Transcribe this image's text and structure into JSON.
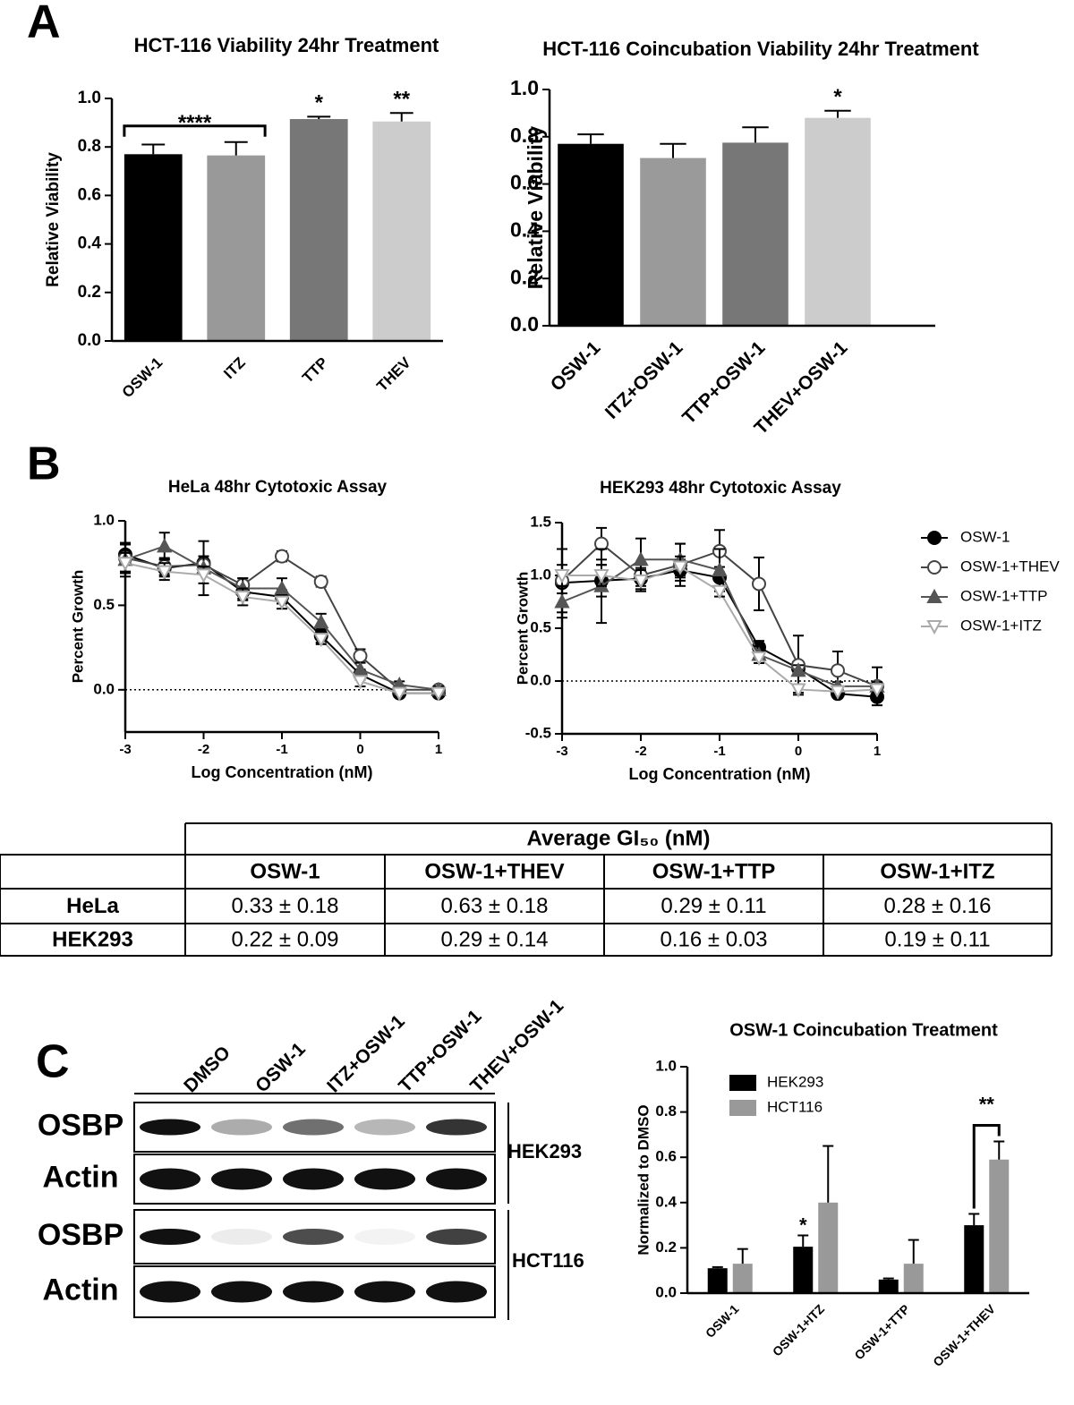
{
  "panel_labels": [
    "A",
    "B",
    "C"
  ],
  "chart_data": [
    {
      "type": "bar",
      "title": "HCT-116 Viability 24hr Treatment",
      "y_label": "Relative Viability",
      "categories": [
        "OSW-1",
        "ITZ",
        "TTP",
        "THEV"
      ],
      "values": [
        0.77,
        0.765,
        0.915,
        0.905
      ],
      "errors": [
        0.04,
        0.055,
        0.01,
        0.035
      ],
      "colors": [
        "#000000",
        "#999999",
        "#777777",
        "#cccccc"
      ],
      "ylim": [
        0,
        1.0
      ],
      "yticks": [
        {
          "value": 0,
          "label": "0.0"
        },
        0.2,
        0.4,
        0.6,
        0.8,
        {
          "value": 1.0,
          "label": "1.0"
        }
      ],
      "annotations": [
        {
          "text": "****",
          "from": "OSW-1",
          "to": "ITZ"
        },
        {
          "text": "*",
          "category": "TTP"
        },
        {
          "text": "**",
          "category": "THEV"
        }
      ]
    },
    {
      "type": "bar",
      "title": "HCT-116 Coincubation Viability 24hr Treatment",
      "y_label": "Relative Viability",
      "categories": [
        "OSW-1",
        "ITZ+OSW-1",
        "TTP+OSW-1",
        "THEV+OSW-1"
      ],
      "values": [
        0.77,
        0.71,
        0.775,
        0.88
      ],
      "errors": [
        0.04,
        0.06,
        0.065,
        0.03
      ],
      "colors": [
        "#000000",
        "#9a9a9a",
        "#777777",
        "#cccccc"
      ],
      "ylim": [
        0,
        1.0
      ],
      "yticks": [
        {
          "value": 0,
          "label": "0.0"
        },
        0.2,
        0.4,
        0.6,
        0.8,
        {
          "value": 1.0,
          "label": "1.0"
        }
      ],
      "annotations": [
        {
          "text": "*",
          "category": "THEV+OSW-1"
        }
      ]
    },
    {
      "type": "dose",
      "title": "HeLa 48hr Cytotoxic Assay",
      "x_label": "Log Concentration (nM)",
      "y_label": "Percent Growth",
      "x": [
        -3,
        -2.5,
        -2,
        -1.5,
        -1,
        -0.5,
        0,
        0.5,
        1
      ],
      "xlim": [
        -3,
        1
      ],
      "xticks": [
        -3,
        -2,
        -1,
        0,
        1
      ],
      "ylim": [
        -0.25,
        1.0
      ],
      "yticks": [
        {
          "value": 0,
          "label": "0.0"
        },
        0.5,
        {
          "value": 1.0,
          "label": "1.0"
        }
      ],
      "zero_line": true,
      "series": [
        {
          "marker": "circle",
          "color": "#000000",
          "values": [
            0.8,
            0.72,
            0.75,
            0.58,
            0.55,
            0.32,
            0.09,
            -0.02,
            -0.02
          ],
          "errors": [
            0.06,
            0.05,
            0.04,
            0.05,
            0.04,
            0.04,
            0.03,
            0.02,
            0.02
          ]
        },
        {
          "marker": "open-circle",
          "color": "#444444",
          "values": [
            0.78,
            0.73,
            0.74,
            0.62,
            0.79,
            0.64,
            0.2,
            0.0,
            0.0
          ],
          "errors": [
            0.08,
            0.05,
            0.05,
            0.04,
            0.03,
            0.03,
            0.04,
            0.02,
            0.02
          ]
        },
        {
          "marker": "triangle",
          "color": "#555555",
          "values": [
            0.77,
            0.85,
            0.72,
            0.6,
            0.6,
            0.4,
            0.12,
            0.03,
            0.0
          ],
          "errors": [
            0.1,
            0.08,
            0.16,
            0.06,
            0.06,
            0.05,
            0.04,
            0.02,
            0.02
          ]
        },
        {
          "marker": "open-triangle-down",
          "color": "#aaaaaa",
          "values": [
            0.75,
            0.7,
            0.68,
            0.55,
            0.52,
            0.3,
            0.05,
            -0.02,
            -0.02
          ],
          "errors": [
            0.06,
            0.05,
            0.05,
            0.05,
            0.04,
            0.03,
            0.03,
            0.02,
            0.02
          ]
        }
      ]
    },
    {
      "type": "dose",
      "title": "HEK293 48hr Cytotoxic Assay",
      "x_label": "Log Concentration (nM)",
      "y_label": "Percent Growth",
      "x": [
        -3,
        -2.5,
        -2,
        -1.5,
        -1,
        -0.5,
        0,
        0.5,
        1
      ],
      "xlim": [
        -3,
        1
      ],
      "xticks": [
        -3,
        -2,
        -1,
        0,
        1
      ],
      "ylim": [
        -0.5,
        1.5
      ],
      "yticks": [
        -0.5,
        {
          "value": 0,
          "label": "0.0"
        },
        0.5,
        {
          "value": 1.0,
          "label": "1.0"
        },
        1.5
      ],
      "zero_line": true,
      "series": [
        {
          "name": "OSW-1",
          "marker": "circle",
          "color": "#000000",
          "values": [
            0.93,
            0.95,
            0.97,
            1.05,
            0.98,
            0.32,
            0.12,
            -0.12,
            -0.15
          ],
          "errors": [
            0.1,
            0.15,
            0.1,
            0.1,
            0.1,
            0.06,
            0.04,
            0.03,
            0.03
          ]
        },
        {
          "name": "OSW-1+THEV",
          "marker": "open-circle",
          "color": "#444444",
          "values": [
            0.95,
            1.3,
            1.0,
            1.1,
            1.23,
            0.92,
            0.15,
            0.1,
            -0.05
          ],
          "errors": [
            0.3,
            0.15,
            0.1,
            0.2,
            0.2,
            0.25,
            0.28,
            0.18,
            0.18
          ]
        },
        {
          "name": "OSW-1+TTP",
          "marker": "triangle",
          "color": "#555555",
          "values": [
            0.75,
            0.9,
            1.15,
            1.15,
            1.05,
            0.25,
            0.1,
            -0.05,
            -0.05
          ],
          "errors": [
            0.15,
            0.35,
            0.2,
            0.15,
            0.2,
            0.08,
            0.05,
            0.04,
            0.04
          ]
        },
        {
          "name": "OSW-1+ITZ",
          "marker": "open-triangle-down",
          "color": "#aaaaaa",
          "values": [
            1.0,
            1.0,
            0.95,
            1.08,
            0.85,
            0.22,
            -0.08,
            -0.1,
            -0.08
          ],
          "errors": [
            0.1,
            0.1,
            0.1,
            0.1,
            0.05,
            0.05,
            0.03,
            0.03,
            0.03
          ]
        }
      ]
    },
    {
      "type": "grouped-bar",
      "title": "OSW-1 Coincubation Treatment",
      "y_label": "Normalized to DMSO",
      "categories": [
        "OSW-1",
        "OSW-1+ITZ",
        "OSW-1+TTP",
        "OSW-1+THEV"
      ],
      "ylim": [
        0,
        1.0
      ],
      "yticks": [
        {
          "value": 0,
          "label": "0.0"
        },
        0.2,
        0.4,
        0.6,
        0.8,
        {
          "value": 1.0,
          "label": "1.0"
        }
      ],
      "series": [
        {
          "name": "HEK293",
          "color": "#000000",
          "values": [
            0.11,
            0.205,
            0.06,
            0.3
          ],
          "errors": [
            0.005,
            0.05,
            0.005,
            0.05
          ]
        },
        {
          "name": "HCT116",
          "color": "#999999",
          "values": [
            0.13,
            0.4,
            0.13,
            0.59
          ],
          "errors": [
            0.065,
            0.25,
            0.105,
            0.08
          ]
        }
      ],
      "annotations": [
        {
          "text": "*",
          "category": "OSW-1+ITZ",
          "series": "HEK293"
        },
        {
          "text": "**",
          "category": "OSW-1+THEV",
          "from": "HEK293",
          "to": "HCT116"
        }
      ]
    }
  ],
  "table": {
    "title": "Average GI₅₀ (nM)",
    "columns": [
      "OSW-1",
      "OSW-1+THEV",
      "OSW-1+TTP",
      "OSW-1+ITZ"
    ],
    "rows": [
      [
        "HeLa",
        "0.33 ± 0.18",
        "0.63 ± 0.18",
        "0.29 ± 0.11",
        "0.28 ± 0.16"
      ],
      [
        "HEK293",
        "0.22 ± 0.09",
        "0.29 ± 0.14",
        "0.16 ± 0.03",
        "0.19 ± 0.11"
      ]
    ]
  },
  "blot": {
    "lanes": [
      "DMSO",
      "OSW-1",
      "ITZ+OSW-1",
      "TTP+OSW-1",
      "THEV+OSW-1"
    ],
    "rows": [
      "OSBP",
      "Actin",
      "OSBP",
      "Actin"
    ],
    "cell_lines": [
      "HEK293",
      "HCT116"
    ]
  }
}
